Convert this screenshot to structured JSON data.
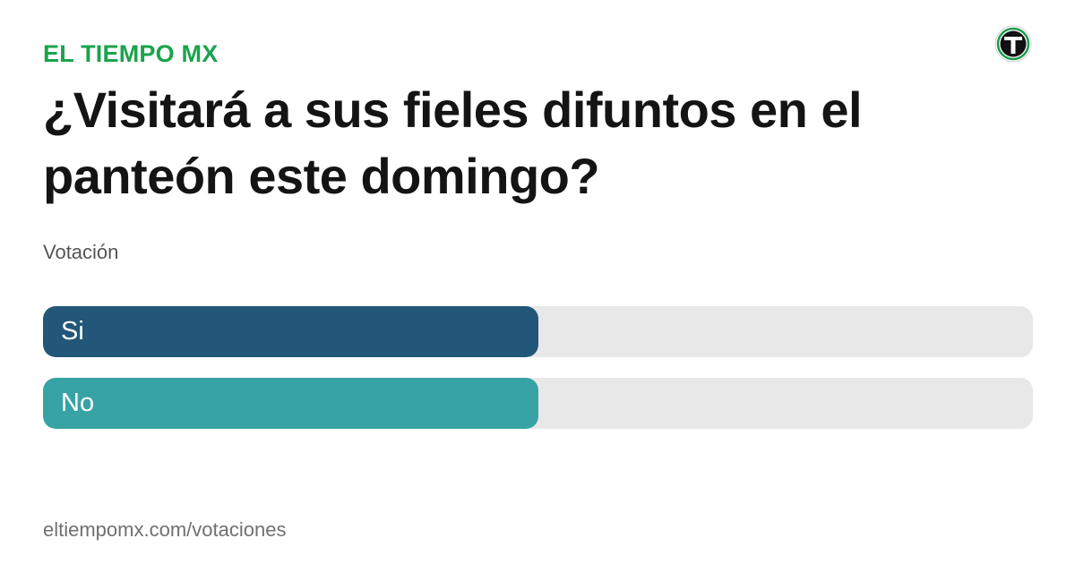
{
  "header": {
    "brand": "EL TIEMPO MX",
    "logo_icon": "el-tiempo-t-logo-icon"
  },
  "poll": {
    "title": "¿Visitará a sus fieles difuntos en el panteón este domingo?",
    "subtitle": "Votación",
    "options": [
      {
        "label": "Si",
        "fraction": 0.5,
        "color": "#225779"
      },
      {
        "label": "No",
        "fraction": 0.5,
        "color": "#37a3a4"
      }
    ]
  },
  "footer": {
    "url": "eltiempomx.com/votaciones"
  },
  "colors": {
    "brand": "#1ba34d",
    "track": "#e8e8e8",
    "logo_dark": "#111111",
    "logo_ring": "#1a9b4b"
  }
}
